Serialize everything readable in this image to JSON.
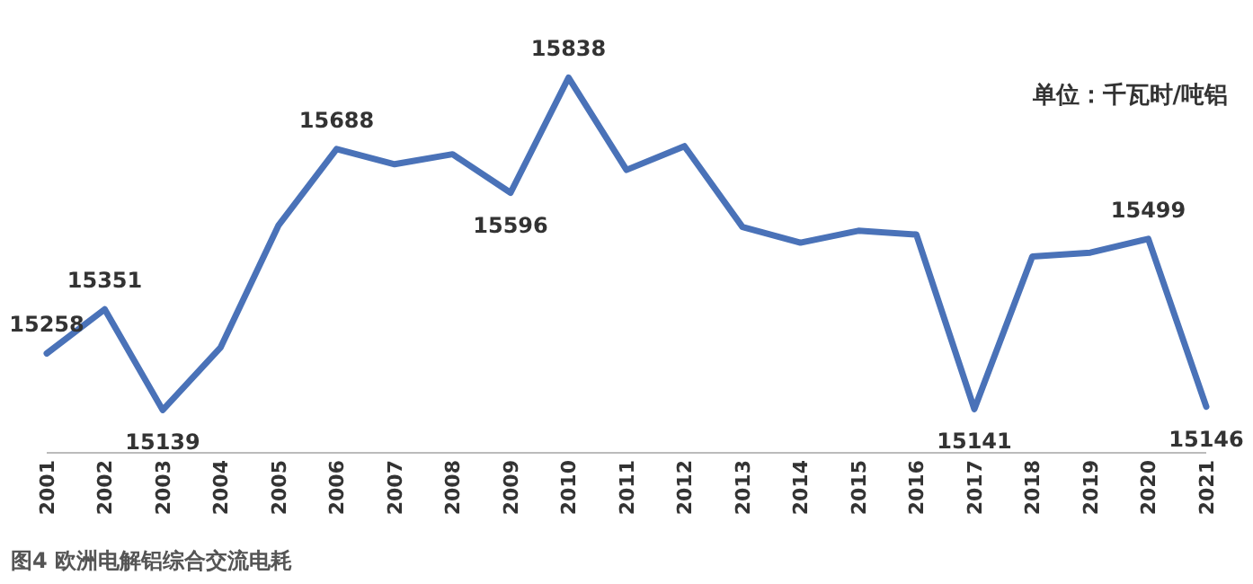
{
  "chart_data": {
    "type": "line",
    "title": "图4 欧洲电解铝综合交流电耗",
    "annotations": [
      "单位：千瓦时/吨铝"
    ],
    "categories": [
      "2001",
      "2002",
      "2003",
      "2004",
      "2005",
      "2006",
      "2007",
      "2008",
      "2009",
      "2010",
      "2011",
      "2012",
      "2013",
      "2014",
      "2015",
      "2016",
      "2017",
      "2018",
      "2019",
      "2020",
      "2021"
    ],
    "series": [
      {
        "color": "#4a72b8",
        "values": [
          15258,
          15351,
          15139,
          15271,
          15528,
          15688,
          15656,
          15677,
          15596,
          15838,
          15644,
          15694,
          15524,
          15491,
          15516,
          15508,
          15141,
          15462,
          15470,
          15499,
          15146
        ],
        "value_labels": [
          "15258",
          "15351",
          "15139",
          null,
          null,
          "15688",
          null,
          null,
          "15596",
          "15838",
          null,
          null,
          null,
          null,
          null,
          null,
          "15141",
          null,
          null,
          "15499",
          "15146"
        ]
      }
    ],
    "marker": "none",
    "line_style": "solid",
    "tick_labels": "x"
  }
}
